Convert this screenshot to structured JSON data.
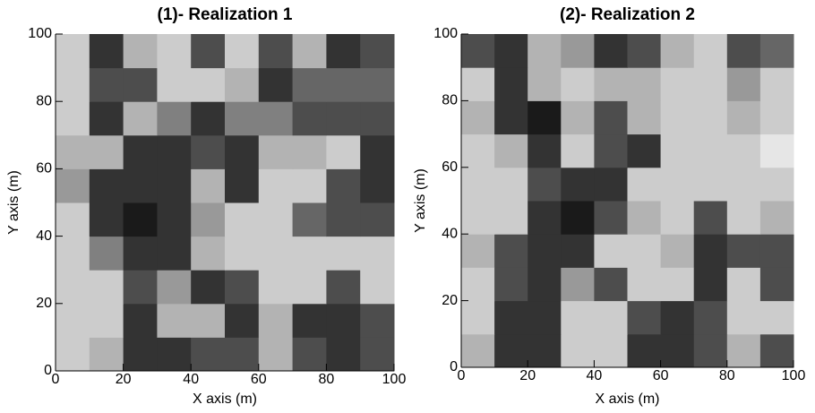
{
  "chart_data": [
    {
      "type": "heatmap",
      "title": "(1)- Realization 1",
      "x_label": "X axis (m)",
      "y_label": "Y axis (m)",
      "xlim": [
        0,
        100
      ],
      "ylim": [
        0,
        100
      ],
      "xticks": [
        0,
        20,
        40,
        60,
        80,
        100
      ],
      "yticks": [
        0,
        20,
        40,
        60,
        80,
        100
      ],
      "z": [
        [
          0.8,
          0.7,
          0.2,
          0.2,
          0.3,
          0.3,
          0.7,
          0.3,
          0.2,
          0.3
        ],
        [
          0.8,
          0.8,
          0.2,
          0.7,
          0.7,
          0.2,
          0.7,
          0.2,
          0.2,
          0.3
        ],
        [
          0.8,
          0.8,
          0.3,
          0.6,
          0.2,
          0.3,
          0.8,
          0.8,
          0.3,
          0.8
        ],
        [
          0.8,
          0.5,
          0.2,
          0.2,
          0.7,
          0.8,
          0.8,
          0.8,
          0.8,
          0.8
        ],
        [
          0.8,
          0.2,
          0.1,
          0.2,
          0.6,
          0.8,
          0.8,
          0.4,
          0.3,
          0.3
        ],
        [
          0.6,
          0.2,
          0.2,
          0.2,
          0.7,
          0.2,
          0.8,
          0.8,
          0.3,
          0.2
        ],
        [
          0.7,
          0.7,
          0.2,
          0.2,
          0.3,
          0.2,
          0.7,
          0.7,
          0.8,
          0.2
        ],
        [
          0.8,
          0.2,
          0.7,
          0.5,
          0.2,
          0.5,
          0.5,
          0.3,
          0.3,
          0.3
        ],
        [
          0.8,
          0.3,
          0.3,
          0.8,
          0.8,
          0.7,
          0.2,
          0.4,
          0.4,
          0.4
        ],
        [
          0.8,
          0.2,
          0.7,
          0.8,
          0.3,
          0.8,
          0.3,
          0.7,
          0.2,
          0.3
        ]
      ]
    },
    {
      "type": "heatmap",
      "title": "(2)- Realization 2",
      "x_label": "X axis (m)",
      "y_label": "Y axis (m)",
      "xlim": [
        0,
        100
      ],
      "ylim": [
        0,
        100
      ],
      "xticks": [
        0,
        20,
        40,
        60,
        80,
        100
      ],
      "yticks": [
        0,
        20,
        40,
        60,
        80,
        100
      ],
      "z": [
        [
          0.7,
          0.2,
          0.2,
          0.8,
          0.8,
          0.2,
          0.2,
          0.3,
          0.7,
          0.3
        ],
        [
          0.8,
          0.2,
          0.2,
          0.8,
          0.8,
          0.3,
          0.2,
          0.3,
          0.8,
          0.8
        ],
        [
          0.8,
          0.3,
          0.2,
          0.6,
          0.3,
          0.8,
          0.8,
          0.2,
          0.8,
          0.3
        ],
        [
          0.7,
          0.3,
          0.2,
          0.2,
          0.8,
          0.8,
          0.7,
          0.2,
          0.3,
          0.3
        ],
        [
          0.8,
          0.8,
          0.2,
          0.1,
          0.3,
          0.7,
          0.8,
          0.3,
          0.8,
          0.7
        ],
        [
          0.8,
          0.8,
          0.3,
          0.2,
          0.2,
          0.8,
          0.8,
          0.8,
          0.8,
          0.8
        ],
        [
          0.8,
          0.7,
          0.2,
          0.8,
          0.3,
          0.2,
          0.8,
          0.8,
          0.8,
          0.9
        ],
        [
          0.7,
          0.2,
          0.1,
          0.7,
          0.3,
          0.7,
          0.8,
          0.8,
          0.7,
          0.8
        ],
        [
          0.8,
          0.2,
          0.7,
          0.8,
          0.7,
          0.7,
          0.8,
          0.8,
          0.6,
          0.8
        ],
        [
          0.3,
          0.2,
          0.7,
          0.6,
          0.2,
          0.3,
          0.7,
          0.8,
          0.3,
          0.4
        ]
      ]
    }
  ]
}
